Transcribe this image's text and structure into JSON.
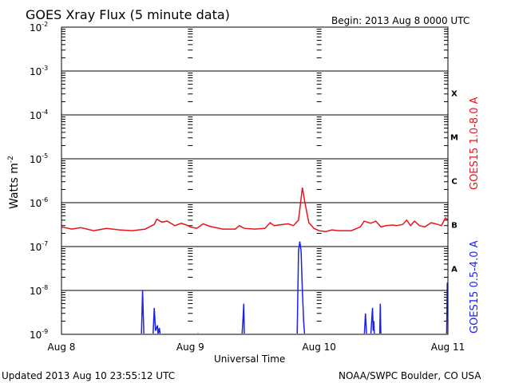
{
  "chart_data": {
    "type": "line",
    "title": "GOES Xray Flux (5 minute data)",
    "begin_label": "Begin:  2013 Aug 8 0000 UTC",
    "xlabel": "Universal Time",
    "ylabel": "Watts m",
    "ylabel_superscript": "-2",
    "y_scale": "log",
    "ylim": [
      1e-09,
      0.01
    ],
    "y_ticks": [
      {
        "base": "10",
        "exp": "-2"
      },
      {
        "base": "10",
        "exp": "-3"
      },
      {
        "base": "10",
        "exp": "-4"
      },
      {
        "base": "10",
        "exp": "-5"
      },
      {
        "base": "10",
        "exp": "-6"
      },
      {
        "base": "10",
        "exp": "-7"
      },
      {
        "base": "10",
        "exp": "-8"
      },
      {
        "base": "10",
        "exp": "-9"
      }
    ],
    "x_range_days": [
      0,
      3
    ],
    "x_ticks": [
      "Aug 8",
      "Aug 9",
      "Aug 10",
      "Aug 11"
    ],
    "flare_classes": [
      "X",
      "M",
      "C",
      "B",
      "A"
    ],
    "grid": true,
    "series": [
      {
        "name": "GOES15 1.0-8.0 A",
        "color": "#e8141c",
        "points": [
          [
            0.0,
            2.8e-07
          ],
          [
            0.08,
            2.5e-07
          ],
          [
            0.15,
            2.7e-07
          ],
          [
            0.25,
            2.3e-07
          ],
          [
            0.35,
            2.6e-07
          ],
          [
            0.45,
            2.4e-07
          ],
          [
            0.55,
            2.3e-07
          ],
          [
            0.65,
            2.5e-07
          ],
          [
            0.72,
            3.2e-07
          ],
          [
            0.74,
            4.2e-07
          ],
          [
            0.78,
            3.6e-07
          ],
          [
            0.82,
            3.8e-07
          ],
          [
            0.88,
            3e-07
          ],
          [
            0.93,
            3.4e-07
          ],
          [
            0.97,
            3.1e-07
          ],
          [
            1.0,
            2.8e-07
          ],
          [
            1.05,
            2.6e-07
          ],
          [
            1.1,
            3.3e-07
          ],
          [
            1.15,
            2.9e-07
          ],
          [
            1.25,
            2.5e-07
          ],
          [
            1.35,
            2.5e-07
          ],
          [
            1.38,
            3e-07
          ],
          [
            1.42,
            2.6e-07
          ],
          [
            1.5,
            2.5e-07
          ],
          [
            1.58,
            2.6e-07
          ],
          [
            1.62,
            3.5e-07
          ],
          [
            1.65,
            3e-07
          ],
          [
            1.72,
            3.2e-07
          ],
          [
            1.76,
            3.3e-07
          ],
          [
            1.8,
            3e-07
          ],
          [
            1.84,
            4e-07
          ],
          [
            1.87,
            2.2e-06
          ],
          [
            1.89,
            1e-06
          ],
          [
            1.92,
            3.5e-07
          ],
          [
            1.96,
            2.6e-07
          ],
          [
            2.0,
            2.3e-07
          ],
          [
            2.05,
            2.2e-07
          ],
          [
            2.1,
            2.4e-07
          ],
          [
            2.15,
            2.3e-07
          ],
          [
            2.25,
            2.3e-07
          ],
          [
            2.32,
            2.8e-07
          ],
          [
            2.35,
            3.8e-07
          ],
          [
            2.4,
            3.4e-07
          ],
          [
            2.44,
            3.8e-07
          ],
          [
            2.48,
            2.8e-07
          ],
          [
            2.52,
            3e-07
          ],
          [
            2.57,
            3.1e-07
          ],
          [
            2.6,
            3e-07
          ],
          [
            2.65,
            3.2e-07
          ],
          [
            2.68,
            4e-07
          ],
          [
            2.71,
            3e-07
          ],
          [
            2.74,
            3.8e-07
          ],
          [
            2.78,
            3e-07
          ],
          [
            2.82,
            2.8e-07
          ],
          [
            2.87,
            3.5e-07
          ],
          [
            2.92,
            3.2e-07
          ],
          [
            2.95,
            3e-07
          ],
          [
            2.98,
            4.5e-07
          ],
          [
            3.0,
            4e-07
          ]
        ]
      },
      {
        "name": "GOES15 0.5-4.0 A",
        "color": "#1a22e8",
        "points": [
          [
            0.0,
            8e-10
          ],
          [
            0.6,
            8e-10
          ],
          [
            0.62,
            8e-10
          ],
          [
            0.63,
            1e-08
          ],
          [
            0.64,
            8e-10
          ],
          [
            0.71,
            8e-10
          ],
          [
            0.72,
            4e-09
          ],
          [
            0.73,
            1.2e-09
          ],
          [
            0.745,
            1.6e-09
          ],
          [
            0.75,
            1e-09
          ],
          [
            0.76,
            1.4e-09
          ],
          [
            0.77,
            8e-10
          ],
          [
            0.85,
            8e-10
          ],
          [
            0.855,
            1e-09
          ],
          [
            0.86,
            8e-10
          ],
          [
            1.05,
            8e-10
          ],
          [
            1.06,
            1e-09
          ],
          [
            1.07,
            8e-10
          ],
          [
            1.4,
            8e-10
          ],
          [
            1.41,
            2.5e-09
          ],
          [
            1.415,
            5e-09
          ],
          [
            1.42,
            8e-10
          ],
          [
            1.82,
            8e-10
          ],
          [
            1.83,
            1e-09
          ],
          [
            1.84,
            8e-08
          ],
          [
            1.85,
            1.3e-07
          ],
          [
            1.86,
            8e-08
          ],
          [
            1.87,
            1e-08
          ],
          [
            1.88,
            2e-09
          ],
          [
            1.89,
            8e-10
          ],
          [
            2.35,
            8e-10
          ],
          [
            2.36,
            3e-09
          ],
          [
            2.37,
            8e-10
          ],
          [
            2.4,
            8e-10
          ],
          [
            2.41,
            2.5e-09
          ],
          [
            2.415,
            4e-09
          ],
          [
            2.42,
            1.2e-09
          ],
          [
            2.425,
            2e-09
          ],
          [
            2.43,
            8e-10
          ],
          [
            2.47,
            8e-10
          ],
          [
            2.475,
            5e-09
          ],
          [
            2.48,
            8e-10
          ],
          [
            2.78,
            8e-10
          ],
          [
            2.785,
            1e-09
          ],
          [
            2.79,
            8e-10
          ],
          [
            2.95,
            8e-10
          ],
          [
            2.99,
            1e-09
          ],
          [
            2.995,
            1.5e-08
          ],
          [
            3.0,
            5e-09
          ]
        ]
      }
    ]
  },
  "footer": {
    "updated": "Updated 2013 Aug 10 23:55:12 UTC",
    "source": "NOAA/SWPC Boulder, CO USA"
  }
}
